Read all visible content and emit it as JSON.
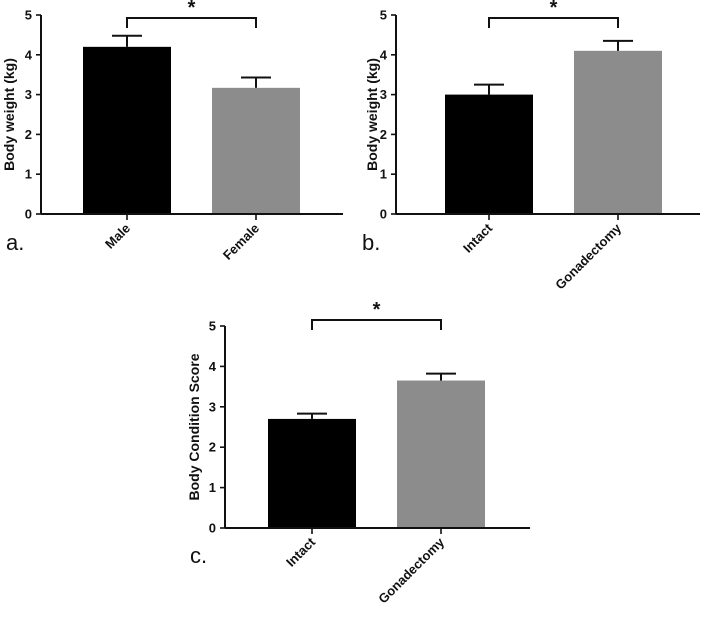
{
  "chart_data": [
    {
      "type": "bar",
      "panel_label": "a.",
      "ylabel": "Body weight (kg)",
      "ylim": [
        0,
        5
      ],
      "yticks": [
        "0",
        "1",
        "2",
        "3",
        "4",
        "5"
      ],
      "categories": [
        "Male",
        "Female"
      ],
      "values": [
        4.2,
        3.17
      ],
      "errors": [
        0.28,
        0.26
      ],
      "colors": [
        "#000000",
        "#8c8c8c"
      ],
      "significance": "*",
      "grid": false
    },
    {
      "type": "bar",
      "panel_label": "b.",
      "ylabel": "Body weight (kg)",
      "ylim": [
        0,
        5
      ],
      "yticks": [
        "0",
        "1",
        "2",
        "3",
        "4",
        "5"
      ],
      "categories": [
        "Intact",
        "Gonadectomy"
      ],
      "values": [
        3.0,
        4.1
      ],
      "errors": [
        0.25,
        0.25
      ],
      "colors": [
        "#000000",
        "#8c8c8c"
      ],
      "significance": "*",
      "grid": false
    },
    {
      "type": "bar",
      "panel_label": "c.",
      "ylabel": "Body Condition Score",
      "ylim": [
        0,
        5
      ],
      "yticks": [
        "0",
        "1",
        "2",
        "3",
        "4",
        "5"
      ],
      "categories": [
        "Intact",
        "Gonadectomy"
      ],
      "values": [
        2.7,
        3.65
      ],
      "errors": [
        0.13,
        0.17
      ],
      "colors": [
        "#000000",
        "#8c8c8c"
      ],
      "significance": "*",
      "grid": false
    }
  ]
}
